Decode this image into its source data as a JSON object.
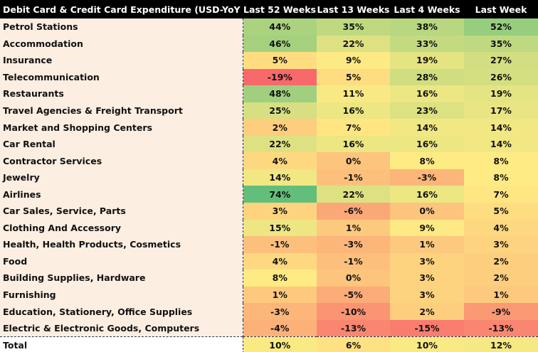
{
  "chart_data": {
    "type": "table",
    "title": "Debit Card & Credit Card Expenditure (USD-YoY %)",
    "columns": [
      "Last 52 Weeks",
      "Last 13 Weeks",
      "Last 4 Weeks",
      "Last Week"
    ],
    "rows": [
      {
        "label": "Petrol Stations",
        "values": [
          44,
          35,
          38,
          52
        ]
      },
      {
        "label": "Accommodation",
        "values": [
          46,
          22,
          33,
          35
        ]
      },
      {
        "label": "Insurance",
        "values": [
          5,
          9,
          19,
          27
        ]
      },
      {
        "label": "Telecommunication",
        "values": [
          -19,
          5,
          28,
          26
        ]
      },
      {
        "label": "Restaurants",
        "values": [
          48,
          11,
          16,
          19
        ]
      },
      {
        "label": "Travel Agencies & Freight Transport",
        "values": [
          25,
          16,
          23,
          17
        ]
      },
      {
        "label": "Market and Shopping Centers",
        "values": [
          2,
          7,
          14,
          14
        ]
      },
      {
        "label": "Car Rental",
        "values": [
          22,
          16,
          16,
          14
        ]
      },
      {
        "label": "Contractor Services",
        "values": [
          4,
          0,
          8,
          8
        ]
      },
      {
        "label": "Jewelry",
        "values": [
          14,
          -1,
          -3,
          8
        ]
      },
      {
        "label": "Airlines",
        "values": [
          74,
          22,
          16,
          7
        ]
      },
      {
        "label": "Car Sales, Service, Parts",
        "values": [
          3,
          -6,
          0,
          5
        ]
      },
      {
        "label": "Clothing And Accessory",
        "values": [
          15,
          1,
          9,
          4
        ]
      },
      {
        "label": "Health, Health Products, Cosmetics",
        "values": [
          -1,
          -3,
          1,
          3
        ]
      },
      {
        "label": "Food",
        "values": [
          4,
          -1,
          3,
          2
        ]
      },
      {
        "label": "Building Supplies, Hardware",
        "values": [
          8,
          0,
          3,
          2
        ]
      },
      {
        "label": "Furnishing",
        "values": [
          1,
          -5,
          3,
          1
        ]
      },
      {
        "label": "Education, Stationery, Office Supplies",
        "values": [
          -3,
          -10,
          2,
          -9
        ]
      },
      {
        "label": "Electric & Electronic Goods, Computers",
        "values": [
          -4,
          -13,
          -15,
          -13
        ]
      }
    ],
    "total": {
      "label": "Total",
      "values": [
        10,
        6,
        10,
        12
      ]
    },
    "value_suffix": "%",
    "color_scale": {
      "low": "#f8696b",
      "mid": "#ffeb84",
      "high": "#63be7b"
    }
  }
}
